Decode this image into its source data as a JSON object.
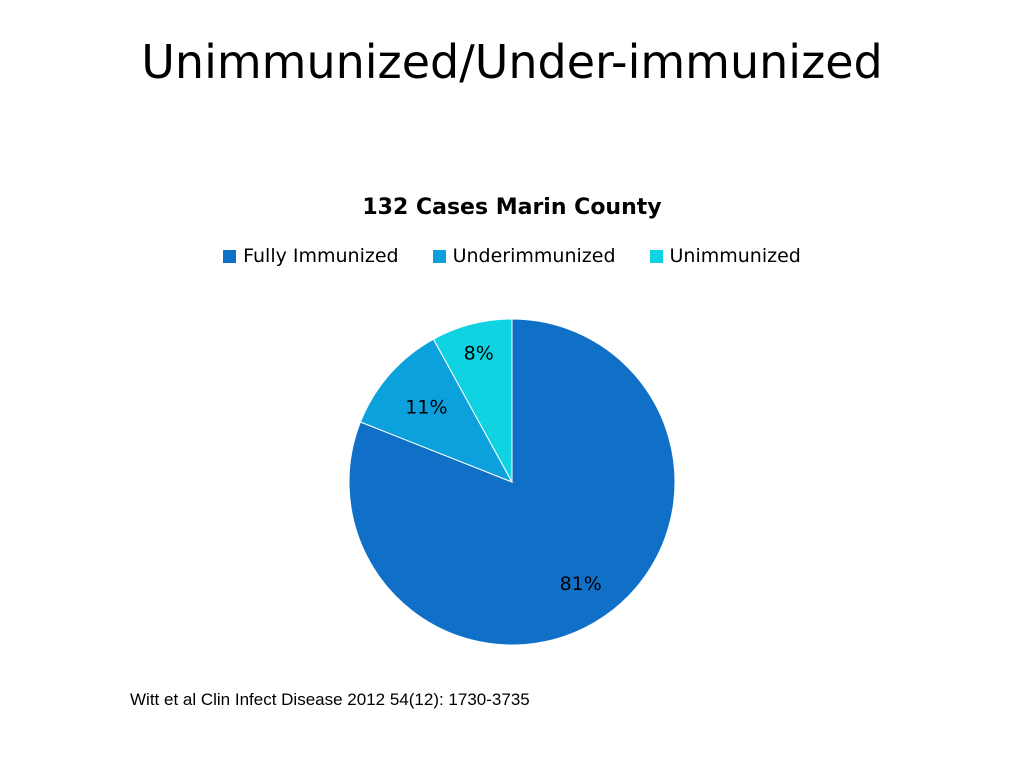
{
  "slide": {
    "title": "Unimmunized/Under-immunized",
    "citation": "Witt et al Clin Infect Disease 2012 54(12): 1730-3735"
  },
  "chart_data": {
    "type": "pie",
    "title": "132 Cases Marin County",
    "legend_position": "top",
    "categories": [
      "Fully Immunized",
      "Underimmunized",
      "Unimmunized"
    ],
    "values": [
      81,
      11,
      8
    ],
    "labels": [
      "81%",
      "11%",
      "8%"
    ],
    "colors": [
      "#1070C8",
      "#0CA0DC",
      "#0FD3E0"
    ]
  }
}
